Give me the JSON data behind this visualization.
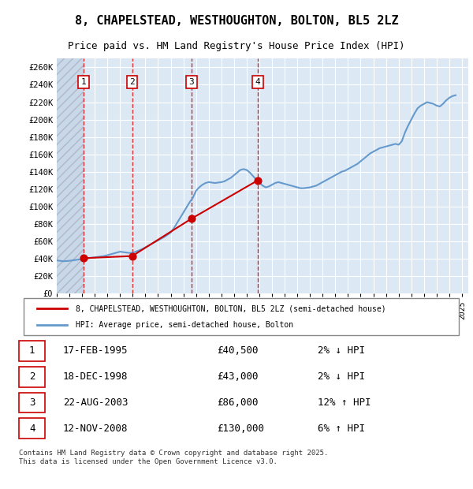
{
  "title_line1": "8, CHAPELSTEAD, WESTHOUGHTON, BOLTON, BL5 2LZ",
  "title_line2": "Price paid vs. HM Land Registry's House Price Index (HPI)",
  "ylabel": "",
  "background_color": "#ffffff",
  "plot_bg_color": "#dce9f5",
  "hatch_color": "#c0c0c0",
  "grid_color": "#ffffff",
  "sale_color": "#cc0000",
  "hpi_color": "#6699cc",
  "vline_color": "#cc0000",
  "ylim": [
    0,
    270000
  ],
  "ytick_step": 20000,
  "sale_dates_year": [
    1995.12,
    1998.96,
    2003.64,
    2008.87
  ],
  "sale_prices": [
    40500,
    43000,
    86000,
    130000
  ],
  "sale_labels": [
    "1",
    "2",
    "3",
    "4"
  ],
  "transaction_info": [
    {
      "label": "1",
      "date": "17-FEB-1995",
      "price": "£40,500",
      "hpi_diff": "2% ↓ HPI"
    },
    {
      "label": "2",
      "date": "18-DEC-1998",
      "price": "£43,000",
      "hpi_diff": "2% ↓ HPI"
    },
    {
      "label": "3",
      "date": "22-AUG-2003",
      "price": "£86,000",
      "hpi_diff": "12% ↑ HPI"
    },
    {
      "label": "4",
      "date": "12-NOV-2008",
      "price": "£130,000",
      "hpi_diff": "6% ↑ HPI"
    }
  ],
  "footer_text": "Contains HM Land Registry data © Crown copyright and database right 2025.\nThis data is licensed under the Open Government Licence v3.0.",
  "legend_sale_label": "8, CHAPELSTEAD, WESTHOUGHTON, BOLTON, BL5 2LZ (semi-detached house)",
  "legend_hpi_label": "HPI: Average price, semi-detached house, Bolton",
  "hpi_data_x": [
    1993,
    1993.25,
    1993.5,
    1993.75,
    1994,
    1994.25,
    1994.5,
    1994.75,
    1995,
    1995.25,
    1995.5,
    1995.75,
    1996,
    1996.25,
    1996.5,
    1996.75,
    1997,
    1997.25,
    1997.5,
    1997.75,
    1998,
    1998.25,
    1998.5,
    1998.75,
    1999,
    1999.25,
    1999.5,
    1999.75,
    2000,
    2000.25,
    2000.5,
    2000.75,
    2001,
    2001.25,
    2001.5,
    2001.75,
    2002,
    2002.25,
    2002.5,
    2002.75,
    2003,
    2003.25,
    2003.5,
    2003.75,
    2004,
    2004.25,
    2004.5,
    2004.75,
    2005,
    2005.25,
    2005.5,
    2005.75,
    2006,
    2006.25,
    2006.5,
    2006.75,
    2007,
    2007.25,
    2007.5,
    2007.75,
    2008,
    2008.25,
    2008.5,
    2008.75,
    2009,
    2009.25,
    2009.5,
    2009.75,
    2010,
    2010.25,
    2010.5,
    2010.75,
    2011,
    2011.25,
    2011.5,
    2011.75,
    2012,
    2012.25,
    2012.5,
    2012.75,
    2013,
    2013.25,
    2013.5,
    2013.75,
    2014,
    2014.25,
    2014.5,
    2014.75,
    2015,
    2015.25,
    2015.5,
    2015.75,
    2016,
    2016.25,
    2016.5,
    2016.75,
    2017,
    2017.25,
    2017.5,
    2017.75,
    2018,
    2018.25,
    2018.5,
    2018.75,
    2019,
    2019.25,
    2019.5,
    2019.75,
    2020,
    2020.25,
    2020.5,
    2020.75,
    2021,
    2021.25,
    2021.5,
    2021.75,
    2022,
    2022.25,
    2022.5,
    2022.75,
    2023,
    2023.25,
    2023.5,
    2023.75,
    2024,
    2024.25,
    2024.5
  ],
  "hpi_data_y": [
    38000,
    37500,
    37000,
    37200,
    37500,
    38000,
    38500,
    39000,
    39500,
    40000,
    40500,
    41000,
    41500,
    42000,
    42500,
    43000,
    44000,
    45000,
    46000,
    47000,
    48000,
    47500,
    47000,
    46500,
    47000,
    48000,
    49500,
    51000,
    53000,
    55000,
    57000,
    59000,
    61000,
    63000,
    65000,
    67500,
    70000,
    75000,
    81000,
    87000,
    93000,
    99000,
    105000,
    110000,
    118000,
    122000,
    125000,
    127000,
    128000,
    127500,
    127000,
    127500,
    128000,
    129000,
    131000,
    133000,
    136000,
    139000,
    142000,
    143000,
    142000,
    139000,
    135000,
    131000,
    128000,
    124000,
    122000,
    123000,
    125000,
    127000,
    128000,
    127000,
    126000,
    125000,
    124000,
    123000,
    122000,
    121000,
    121000,
    121500,
    122000,
    123000,
    124000,
    126000,
    128000,
    130000,
    132000,
    134000,
    136000,
    138000,
    140000,
    141000,
    143000,
    145000,
    147000,
    149000,
    152000,
    155000,
    158000,
    161000,
    163000,
    165000,
    167000,
    168000,
    169000,
    170000,
    171000,
    172000,
    171000,
    175000,
    185000,
    193000,
    200000,
    207000,
    213000,
    216000,
    218000,
    220000,
    219000,
    218000,
    216000,
    215000,
    218000,
    222000,
    225000,
    227000,
    228000
  ],
  "xmin": 1993,
  "xmax": 2025.5
}
